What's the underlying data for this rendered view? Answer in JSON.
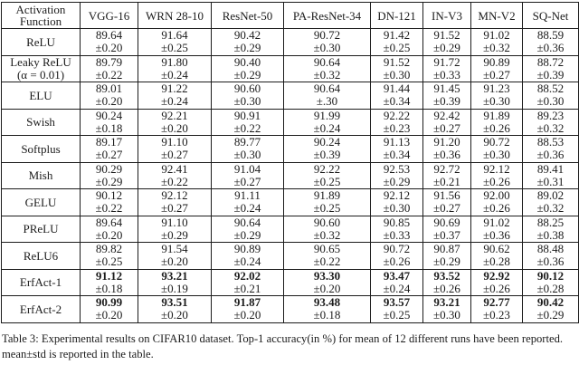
{
  "page": {
    "background": "#ffffff",
    "text_color": "#1b1b1b",
    "border_color": "#1c1c1c"
  },
  "table": {
    "header": [
      "Activation Function",
      "VGG-16",
      "WRN 28-10",
      "ResNet-50",
      "PA-ResNet-34",
      "DN-121",
      "IN-V3",
      "MN-V2",
      "SQ-Net"
    ],
    "rows": [
      {
        "label": "ReLU",
        "label_line2": "",
        "bold_means": false,
        "cells": [
          {
            "mean": "89.64",
            "std": "±0.20"
          },
          {
            "mean": "91.64",
            "std": "±0.25"
          },
          {
            "mean": "90.42",
            "std": "±0.29"
          },
          {
            "mean": "90.72",
            "std": "±0.30"
          },
          {
            "mean": "91.42",
            "std": "±0.25"
          },
          {
            "mean": "91.52",
            "std": "±0.29"
          },
          {
            "mean": "91.02",
            "std": "±0.32"
          },
          {
            "mean": "88.59",
            "std": "±0.36"
          }
        ]
      },
      {
        "label": "Leaky ReLU",
        "label_line2": "(α = 0.01)",
        "bold_means": false,
        "cells": [
          {
            "mean": "89.79",
            "std": "±0.22"
          },
          {
            "mean": "91.80",
            "std": "±0.24"
          },
          {
            "mean": "90.40",
            "std": "±0.29"
          },
          {
            "mean": "90.64",
            "std": "±0.32"
          },
          {
            "mean": "91.52",
            "std": "±0.30"
          },
          {
            "mean": "91.72",
            "std": "±0.33"
          },
          {
            "mean": "90.89",
            "std": "±0.27"
          },
          {
            "mean": "88.72",
            "std": "±0.39"
          }
        ]
      },
      {
        "label": "ELU",
        "label_line2": "",
        "bold_means": false,
        "cells": [
          {
            "mean": "89.01",
            "std": "±0.20"
          },
          {
            "mean": "91.22",
            "std": "±0.24"
          },
          {
            "mean": "90.60",
            "std": "±0.30"
          },
          {
            "mean": "90.64",
            "std": "±.30"
          },
          {
            "mean": "91.44",
            "std": "±0.34"
          },
          {
            "mean": "91.45",
            "std": "±0.39"
          },
          {
            "mean": "91.23",
            "std": "±0.30"
          },
          {
            "mean": "88.52",
            "std": "±0.30"
          }
        ]
      },
      {
        "label": "Swish",
        "label_line2": "",
        "bold_means": false,
        "cells": [
          {
            "mean": "90.24",
            "std": "±0.18"
          },
          {
            "mean": "92.21",
            "std": "±0.20"
          },
          {
            "mean": "90.91",
            "std": "±0.22"
          },
          {
            "mean": "91.99",
            "std": "±0.24"
          },
          {
            "mean": "92.22",
            "std": "±0.23"
          },
          {
            "mean": "92.42",
            "std": "±0.27"
          },
          {
            "mean": "91.89",
            "std": "±0.26"
          },
          {
            "mean": "89.23",
            "std": "±0.32"
          }
        ]
      },
      {
        "label": "Softplus",
        "label_line2": "",
        "bold_means": false,
        "cells": [
          {
            "mean": "89.17",
            "std": "±0.27"
          },
          {
            "mean": "91.10",
            "std": "±0.27"
          },
          {
            "mean": "89.77",
            "std": "±0.30"
          },
          {
            "mean": "90.24",
            "std": "±0.39"
          },
          {
            "mean": "91.13",
            "std": "±0.34"
          },
          {
            "mean": "91.20",
            "std": "±0.36"
          },
          {
            "mean": "90.72",
            "std": "±0.30"
          },
          {
            "mean": "88.53",
            "std": "±0.36"
          }
        ]
      },
      {
        "label": "Mish",
        "label_line2": "",
        "bold_means": false,
        "cells": [
          {
            "mean": "90.29",
            "std": "±0.29"
          },
          {
            "mean": "92.41",
            "std": "±0.22"
          },
          {
            "mean": "91.04",
            "std": "±0.27"
          },
          {
            "mean": "92.22",
            "std": "±0.25"
          },
          {
            "mean": "92.53",
            "std": "±0.29"
          },
          {
            "mean": "92.72",
            "std": "±0.21"
          },
          {
            "mean": "92.12",
            "std": "±0.26"
          },
          {
            "mean": "89.41",
            "std": "±0.31"
          }
        ]
      },
      {
        "label": "GELU",
        "label_line2": "",
        "bold_means": false,
        "cells": [
          {
            "mean": "90.12",
            "std": "±0.22"
          },
          {
            "mean": "92.12",
            "std": "±0.27"
          },
          {
            "mean": "91.11",
            "std": "±0.24"
          },
          {
            "mean": "91.89",
            "std": "±0.25"
          },
          {
            "mean": "92.12",
            "std": "±0.30"
          },
          {
            "mean": "91.56",
            "std": "±0.27"
          },
          {
            "mean": "92.00",
            "std": "±0.26"
          },
          {
            "mean": "89.02",
            "std": "±0.32"
          }
        ]
      },
      {
        "label": "PReLU",
        "label_line2": "",
        "bold_means": false,
        "cells": [
          {
            "mean": "89.64",
            "std": "±0.20"
          },
          {
            "mean": "91.10",
            "std": "±0.29"
          },
          {
            "mean": "90.64",
            "std": "±0.29"
          },
          {
            "mean": "90.60",
            "std": "±0.32"
          },
          {
            "mean": "90.85",
            "std": "±0.33"
          },
          {
            "mean": "90.69",
            "std": "±0.37"
          },
          {
            "mean": "91.02",
            "std": "±0.36"
          },
          {
            "mean": "88.25",
            "std": "±0.38"
          }
        ]
      },
      {
        "label": "ReLU6",
        "label_line2": "",
        "bold_means": false,
        "cells": [
          {
            "mean": "89.82",
            "std": "±0.25"
          },
          {
            "mean": "91.54",
            "std": "±0.20"
          },
          {
            "mean": "90.89",
            "std": "±0.24"
          },
          {
            "mean": "90.65",
            "std": "±0.22"
          },
          {
            "mean": "90.72",
            "std": "±0.26"
          },
          {
            "mean": "90.87",
            "std": "±0.29"
          },
          {
            "mean": "90.62",
            "std": "±0.28"
          },
          {
            "mean": "88.48",
            "std": "±0.36"
          }
        ]
      },
      {
        "label": "ErfAct-1",
        "label_line2": "",
        "bold_means": true,
        "cells": [
          {
            "mean": "91.12",
            "std": "±0.18"
          },
          {
            "mean": "93.21",
            "std": "±0.19"
          },
          {
            "mean": "92.02",
            "std": "±0.21"
          },
          {
            "mean": "93.30",
            "std": "±0.20"
          },
          {
            "mean": "93.47",
            "std": "±0.24"
          },
          {
            "mean": "93.52",
            "std": "±0.26"
          },
          {
            "mean": "92.92",
            "std": "±0.26"
          },
          {
            "mean": "90.12",
            "std": "±0.28"
          }
        ]
      },
      {
        "label": "ErfAct-2",
        "label_line2": "",
        "bold_means": true,
        "cells": [
          {
            "mean": "90.99",
            "std": "±0.20"
          },
          {
            "mean": "93.51",
            "std": "±0.20"
          },
          {
            "mean": "91.87",
            "std": "±0.20"
          },
          {
            "mean": "93.48",
            "std": "±0.18"
          },
          {
            "mean": "93.57",
            "std": "±0.25"
          },
          {
            "mean": "93.21",
            "std": "±0.30"
          },
          {
            "mean": "92.77",
            "std": "±0.23"
          },
          {
            "mean": "90.42",
            "std": "±0.29"
          }
        ]
      }
    ]
  },
  "caption": {
    "text": "Table 3: Experimental results on CIFAR10 dataset. Top-1 accuracy(in %) for mean of 12 different runs have been reported. mean±std is reported in the table."
  }
}
